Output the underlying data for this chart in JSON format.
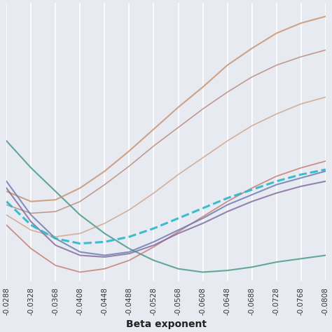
{
  "x_values": [
    -0.0288,
    -0.0328,
    -0.0368,
    -0.0408,
    -0.0448,
    -0.0488,
    -0.0528,
    -0.0568,
    -0.0608,
    -0.0648,
    -0.0688,
    -0.0728,
    -0.0768,
    -0.0808
  ],
  "xlabel": "Beta exponent",
  "background_color": "#e8eaf2",
  "grid_color": "#ffffff",
  "lines": [
    {
      "name": "teal_solid_top",
      "color": "#4a9a8a",
      "linestyle": "solid",
      "linewidth": 1.5,
      "alpha": 0.85,
      "values": [
        0.88,
        0.72,
        0.58,
        0.44,
        0.33,
        0.24,
        0.17,
        0.12,
        0.1,
        0.11,
        0.13,
        0.16,
        0.18,
        0.2
      ]
    },
    {
      "name": "orange_upper",
      "color": "#c8906a",
      "linestyle": "solid",
      "linewidth": 1.5,
      "alpha": 0.8,
      "values": [
        0.58,
        0.52,
        0.53,
        0.6,
        0.7,
        0.82,
        0.95,
        1.08,
        1.2,
        1.33,
        1.43,
        1.52,
        1.58,
        1.62
      ]
    },
    {
      "name": "orange_lower",
      "color": "#c8906a",
      "linestyle": "solid",
      "linewidth": 1.2,
      "alpha": 0.65,
      "values": [
        0.44,
        0.35,
        0.31,
        0.33,
        0.39,
        0.47,
        0.57,
        0.68,
        0.78,
        0.88,
        0.97,
        1.04,
        1.1,
        1.14
      ]
    },
    {
      "name": "brown_upper",
      "color": "#b07868",
      "linestyle": "solid",
      "linewidth": 1.2,
      "alpha": 0.7,
      "values": [
        0.5,
        0.45,
        0.46,
        0.52,
        0.62,
        0.73,
        0.85,
        0.96,
        1.07,
        1.17,
        1.26,
        1.33,
        1.38,
        1.42
      ]
    },
    {
      "name": "red_lower",
      "color": "#c06858",
      "linestyle": "solid",
      "linewidth": 1.3,
      "alpha": 0.7,
      "values": [
        0.38,
        0.24,
        0.14,
        0.1,
        0.12,
        0.17,
        0.25,
        0.34,
        0.43,
        0.52,
        0.6,
        0.67,
        0.72,
        0.76
      ]
    },
    {
      "name": "blue_line",
      "color": "#6878b0",
      "linestyle": "solid",
      "linewidth": 1.5,
      "alpha": 0.8,
      "values": [
        0.64,
        0.44,
        0.3,
        0.22,
        0.2,
        0.22,
        0.28,
        0.35,
        0.42,
        0.5,
        0.56,
        0.62,
        0.66,
        0.7
      ]
    },
    {
      "name": "purple_line",
      "color": "#806898",
      "linestyle": "solid",
      "linewidth": 1.5,
      "alpha": 0.8,
      "values": [
        0.6,
        0.4,
        0.26,
        0.2,
        0.19,
        0.21,
        0.26,
        0.33,
        0.39,
        0.46,
        0.52,
        0.57,
        0.61,
        0.64
      ]
    },
    {
      "name": "teal_dashed",
      "color": "#2ab8c8",
      "linestyle": "dashed",
      "linewidth": 2.2,
      "alpha": 0.9,
      "values": [
        0.52,
        0.38,
        0.3,
        0.27,
        0.28,
        0.31,
        0.36,
        0.42,
        0.48,
        0.54,
        0.59,
        0.64,
        0.68,
        0.71
      ]
    }
  ],
  "ylim": [
    0.05,
    1.7
  ],
  "xlim": [
    -0.0288,
    -0.0808
  ],
  "xtick_labels": [
    "-0.0288",
    "-0.0328",
    "-0.0368",
    "-0.0408",
    "-0.0448",
    "-0.0488",
    "-0.0528",
    "-0.0568",
    "-0.0608",
    "-0.0648",
    "-0.0688",
    "-0.0728",
    "-0.0768",
    "-0.0808"
  ],
  "tick_fontsize": 7.5,
  "label_fontsize": 10,
  "figsize": [
    4.74,
    4.74
  ],
  "dpi": 100
}
